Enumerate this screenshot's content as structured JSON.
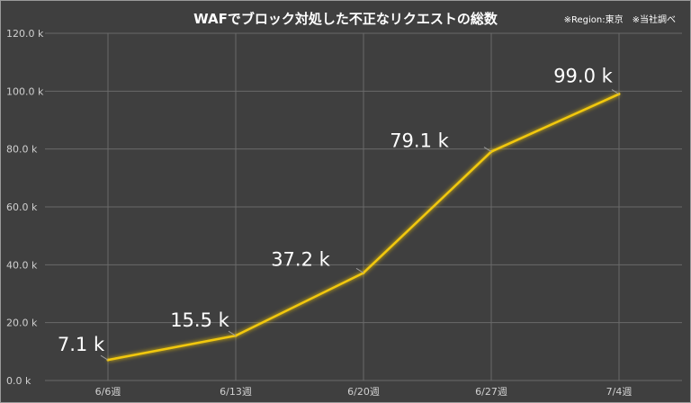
{
  "chart_data": {
    "type": "line",
    "title": "WAFでブロック対処した不正なリクエストの総数",
    "note": "※Region:東京　※当社調べ",
    "categories": [
      "6/6週",
      "6/13週",
      "6/20週",
      "6/27週",
      "7/4週"
    ],
    "series": [
      {
        "values": [
          7100,
          15500,
          37200,
          79100,
          99000
        ],
        "labels": [
          "7.1 k",
          "15.5 k",
          "37.2 k",
          "79.1 k",
          "99.0 k"
        ],
        "color": "#f2c811"
      }
    ],
    "yticks": [
      {
        "value": 0,
        "label": "0.0 k"
      },
      {
        "value": 20000,
        "label": "20.0 k"
      },
      {
        "value": 40000,
        "label": "40.0 k"
      },
      {
        "value": 60000,
        "label": "60.0 k"
      },
      {
        "value": 80000,
        "label": "80.0 k"
      },
      {
        "value": 100000,
        "label": "100.0 k"
      },
      {
        "value": 120000,
        "label": "120.0 k"
      }
    ],
    "ylim": [
      0,
      120000
    ],
    "grid": true,
    "background": "#3f3f3f",
    "grid_color": "#6a6a6a"
  }
}
